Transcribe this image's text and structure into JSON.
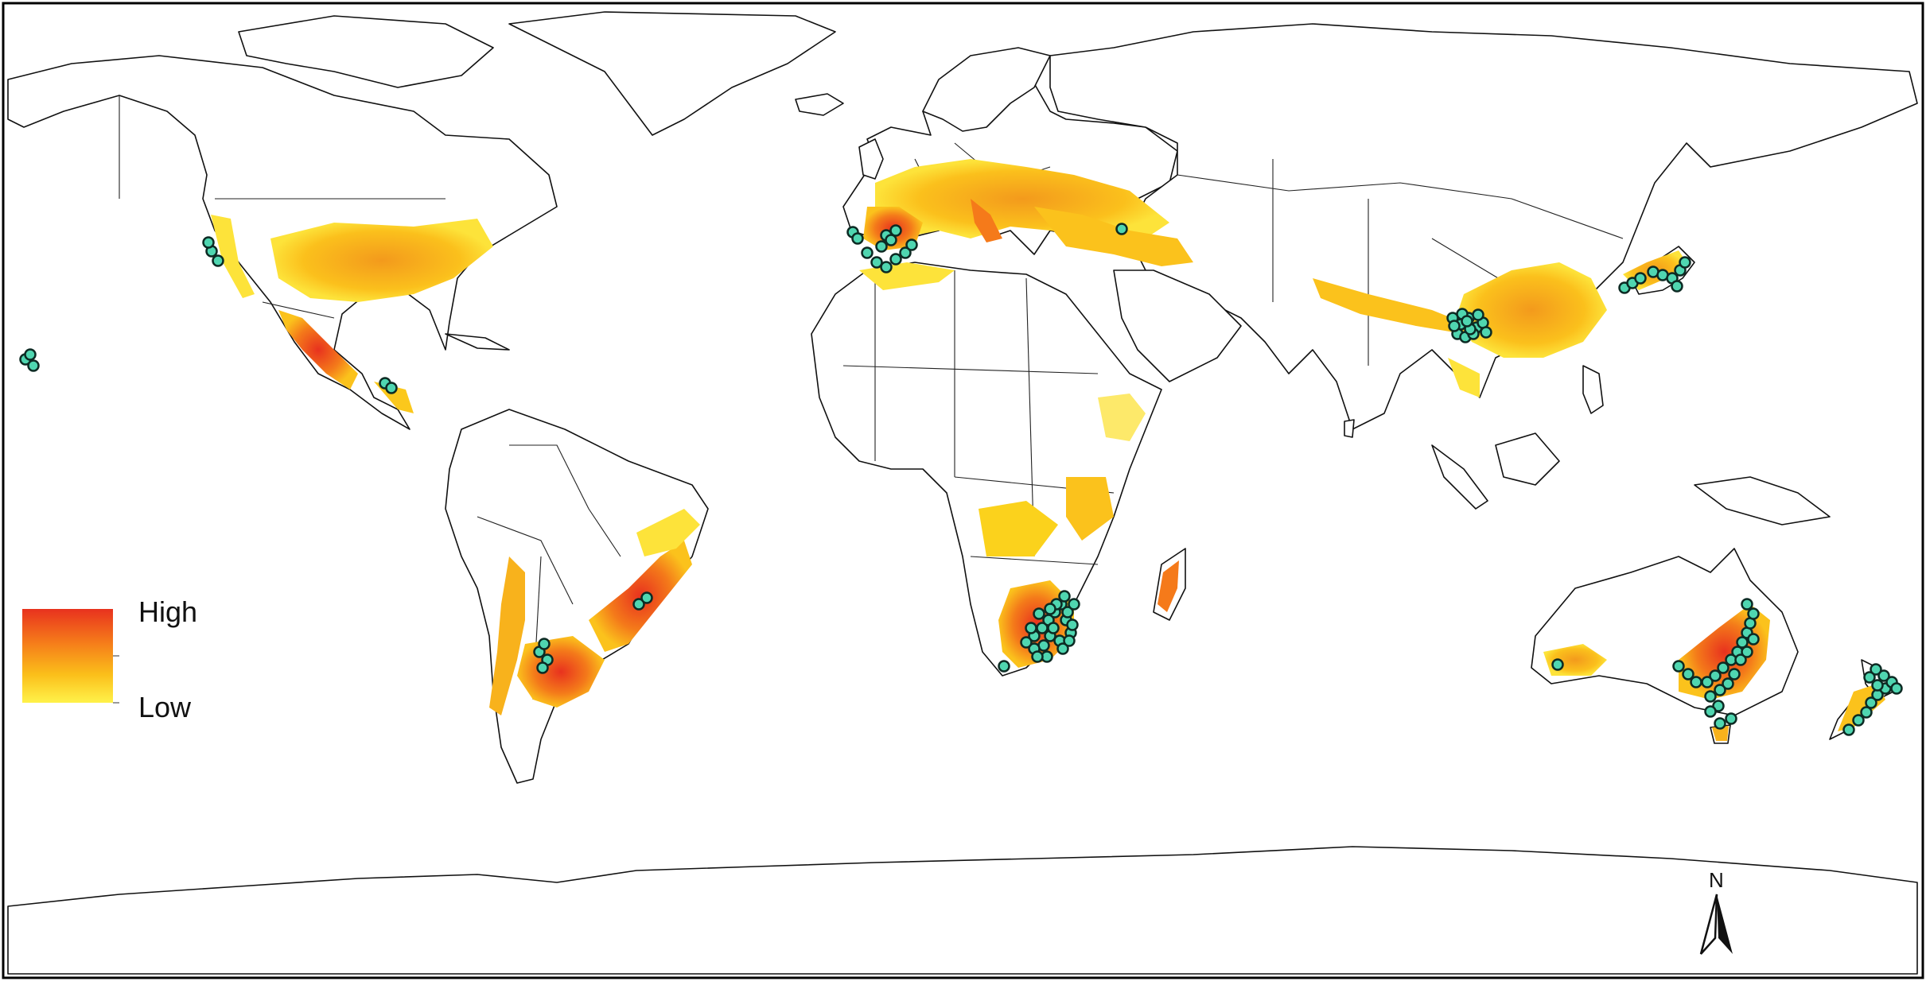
{
  "legend": {
    "high_label": "High",
    "low_label": "Low",
    "gradient_colors": [
      "#e8321e",
      "#f57a1a",
      "#fbbf1a",
      "#fff24a"
    ]
  },
  "north_arrow": {
    "label": "N"
  },
  "colors": {
    "background": "#ffffff",
    "coastline": "#111111",
    "suitability_high": "#e8321e",
    "suitability_mid": "#f7a21a",
    "suitability_low": "#fde33a",
    "occurrence_fill": "#4fd6b0",
    "occurrence_stroke": "#0d2b24"
  },
  "suitability_regions": [
    {
      "name": "eastern-united-states",
      "level": "mid"
    },
    {
      "name": "mexico-highlands",
      "level": "mid"
    },
    {
      "name": "western-europe",
      "level": "mid"
    },
    {
      "name": "iberia-france",
      "level": "high"
    },
    {
      "name": "balkans-turkey",
      "level": "mid"
    },
    {
      "name": "himalaya",
      "level": "low"
    },
    {
      "name": "eastern-china",
      "level": "mid"
    },
    {
      "name": "japan",
      "level": "mid"
    },
    {
      "name": "ethiopian-highlands",
      "level": "low"
    },
    {
      "name": "central-africa-plateau",
      "level": "low"
    },
    {
      "name": "southern-africa",
      "level": "high"
    },
    {
      "name": "madagascar",
      "level": "mid"
    },
    {
      "name": "andes-argentina",
      "level": "mid"
    },
    {
      "name": "uruguay-pampas",
      "level": "high"
    },
    {
      "name": "southeast-brazil",
      "level": "high"
    },
    {
      "name": "southwest-australia",
      "level": "mid"
    },
    {
      "name": "southeast-australia",
      "level": "high"
    },
    {
      "name": "new-zealand",
      "level": "mid"
    }
  ],
  "occurrence_groups": [
    {
      "name": "california",
      "count": 3
    },
    {
      "name": "hawaii",
      "count": 3
    },
    {
      "name": "central-america",
      "count": 2
    },
    {
      "name": "iberia",
      "count": 12
    },
    {
      "name": "caucasus",
      "count": 1
    },
    {
      "name": "china",
      "count": 14
    },
    {
      "name": "japan",
      "count": 9
    },
    {
      "name": "southeast-brazil",
      "count": 2
    },
    {
      "name": "argentina",
      "count": 4
    },
    {
      "name": "south-africa",
      "count": 26
    },
    {
      "name": "southwest-australia",
      "count": 1
    },
    {
      "name": "southeast-australia",
      "count": 24
    },
    {
      "name": "new-zealand",
      "count": 12
    }
  ]
}
